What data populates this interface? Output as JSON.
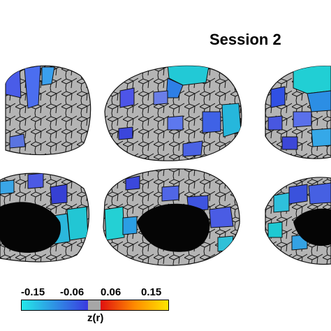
{
  "title": "Session 2",
  "colorbar": {
    "ticks": [
      "-0.15",
      "-0.06",
      "0.06",
      "0.15"
    ],
    "label": "z(r)",
    "colors": {
      "cyan": "#24e8e8",
      "blue": "#3a3ae0",
      "neutral": "#a6a6a6",
      "red": "#e01010",
      "orange": "#ff8a00",
      "yellow": "#ffe600"
    }
  },
  "surface": {
    "base_color": "#b4b4b4",
    "medial_wall_color": "#050505",
    "parcel_line_color": "#111111"
  }
}
